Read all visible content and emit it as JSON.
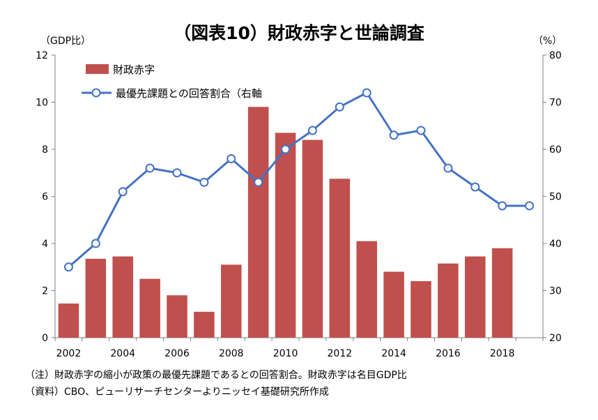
{
  "title": "（図表10）財政赤字と世論調査",
  "left_unit": "（GDP比）",
  "right_unit": "（%）",
  "notes": [
    "（注）財政赤字の縮小が政策の最優先課題であるとの回答割合。財政赤字は名目GDP比",
    "（資料）CBO、ピューリサーチセンターよりニッセイ基礎研究所作成"
  ],
  "colors": {
    "bar": "#c0504d",
    "line": "#4472c4",
    "marker_fill": "#ffffff"
  },
  "chart_data": {
    "type": "bar+line",
    "x": [
      2002,
      2003,
      2004,
      2005,
      2006,
      2007,
      2008,
      2009,
      2010,
      2011,
      2012,
      2013,
      2014,
      2015,
      2016,
      2017,
      2018,
      2019
    ],
    "x_tick_labels": [
      "2002",
      "2004",
      "2006",
      "2008",
      "2010",
      "2012",
      "2014",
      "2016",
      "2018"
    ],
    "y_left": {
      "range": [
        0,
        12
      ],
      "ticks": [
        "0",
        "2",
        "4",
        "6",
        "8",
        "10",
        "12"
      ]
    },
    "y_right": {
      "range": [
        20,
        80
      ],
      "ticks": [
        "20",
        "30",
        "40",
        "50",
        "60",
        "70",
        "80"
      ]
    },
    "grid": false,
    "legend_position": "top-left",
    "series": [
      {
        "name": "財政赤字",
        "type": "bar",
        "axis": "left",
        "values": [
          1.45,
          3.35,
          3.45,
          2.5,
          1.8,
          1.1,
          3.1,
          9.8,
          8.7,
          8.4,
          6.75,
          4.1,
          2.8,
          2.4,
          3.15,
          3.45,
          3.8,
          null
        ]
      },
      {
        "name": "最優先課題との回答割合（右軸",
        "type": "line",
        "axis": "right",
        "values": [
          35,
          40,
          51,
          56,
          55,
          53,
          58,
          53,
          60,
          64,
          69,
          72,
          63,
          64,
          56,
          52,
          48,
          48
        ]
      }
    ]
  }
}
